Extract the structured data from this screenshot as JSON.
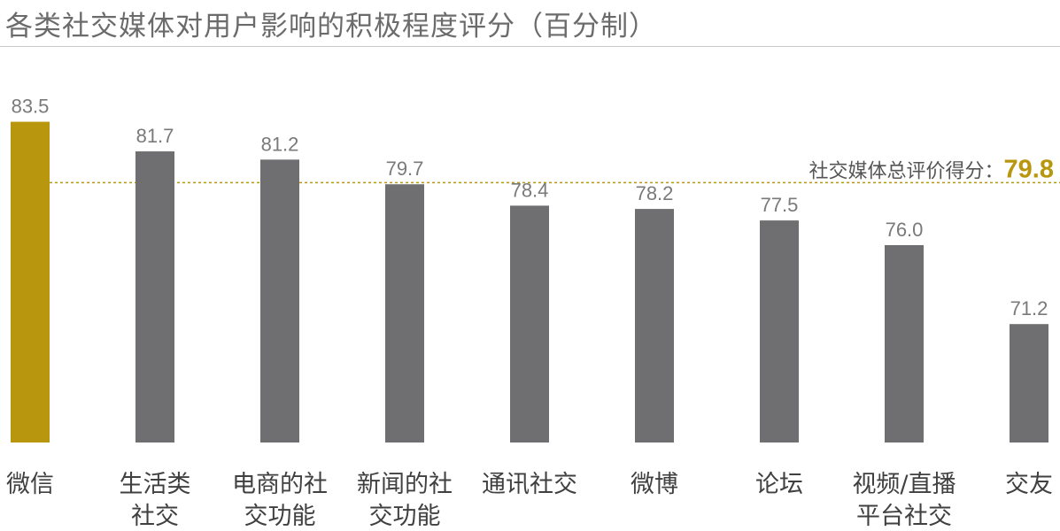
{
  "chart_data": {
    "type": "bar",
    "title": "各类社交媒体对用户影响的积极程度评分（百分制）",
    "categories": [
      [
        "微信"
      ],
      [
        "生活类",
        "社交"
      ],
      [
        "电商的社",
        "交功能"
      ],
      [
        "新闻的社",
        "交功能"
      ],
      [
        "通讯社交"
      ],
      [
        "微博"
      ],
      [
        "论坛"
      ],
      [
        "视频/直播",
        "平台社交"
      ],
      [
        "交友"
      ]
    ],
    "values": [
      83.5,
      81.7,
      81.2,
      79.7,
      78.4,
      78.2,
      77.5,
      76.0,
      71.2
    ],
    "value_labels": [
      "83.5",
      "81.7",
      "81.2",
      "79.7",
      "78.4",
      "78.2",
      "77.5",
      "76.0",
      "71.2"
    ],
    "highlight_index": 0,
    "reference_line": {
      "label": "社交媒体总评价得分：",
      "value": 79.8,
      "value_label": "79.8"
    },
    "ylim": [
      64,
      85.2
    ],
    "grid": false,
    "colors": {
      "highlight": "#b8960e",
      "bar": "#6f6e70",
      "reference": "#b8960e",
      "label": "#7a7a7a",
      "category": "#404040"
    }
  }
}
